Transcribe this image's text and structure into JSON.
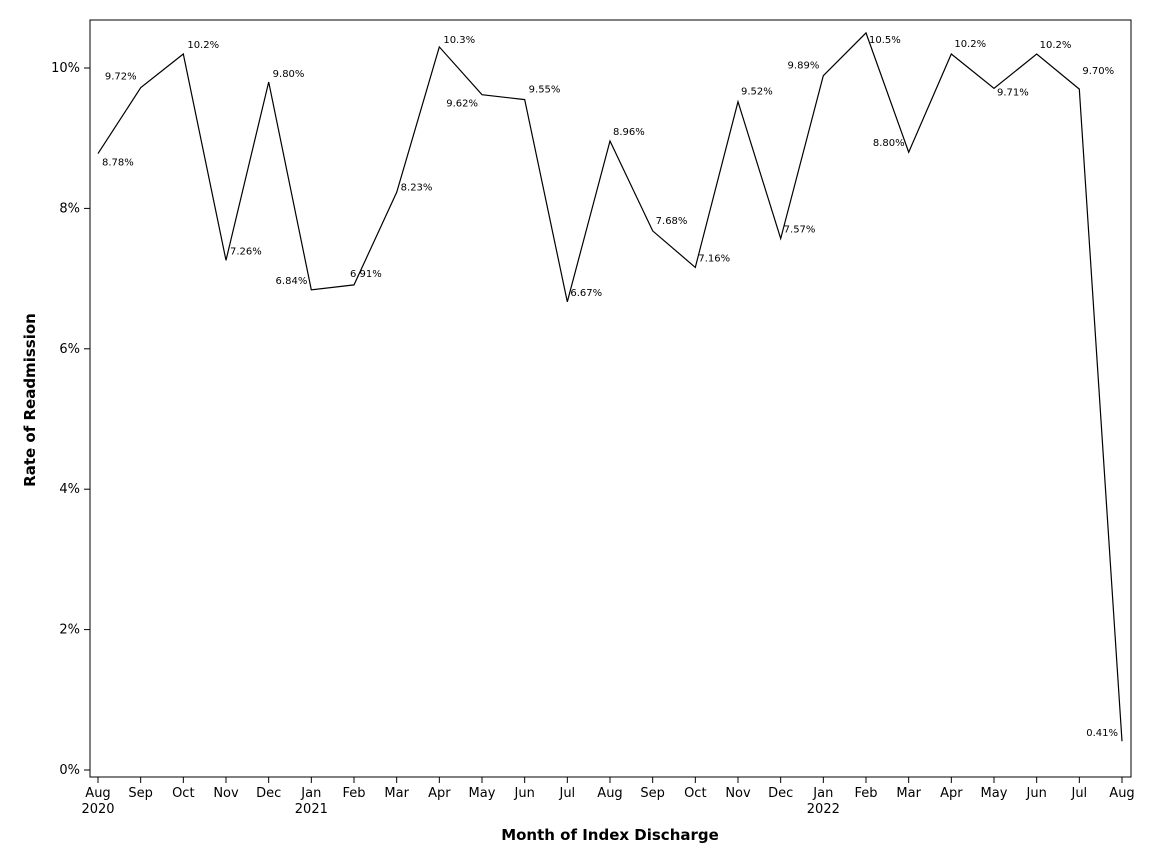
{
  "chart_data": {
    "type": "line",
    "title": "",
    "xlabel": "Month of Index Discharge",
    "ylabel": "Rate of Readmission",
    "ylim": [
      0,
      10.8
    ],
    "yticks": [
      "0%",
      "2%",
      "4%",
      "6%",
      "8%",
      "10%"
    ],
    "grid": false,
    "legend": "none",
    "line_color": "#000000",
    "x": [
      {
        "month": "Aug",
        "year": "2020"
      },
      {
        "month": "Sep",
        "year": ""
      },
      {
        "month": "Oct",
        "year": ""
      },
      {
        "month": "Nov",
        "year": ""
      },
      {
        "month": "Dec",
        "year": ""
      },
      {
        "month": "Jan",
        "year": "2021"
      },
      {
        "month": "Feb",
        "year": ""
      },
      {
        "month": "Mar",
        "year": ""
      },
      {
        "month": "Apr",
        "year": ""
      },
      {
        "month": "May",
        "year": ""
      },
      {
        "month": "Jun",
        "year": ""
      },
      {
        "month": "Jul",
        "year": ""
      },
      {
        "month": "Aug",
        "year": ""
      },
      {
        "month": "Sep",
        "year": ""
      },
      {
        "month": "Oct",
        "year": ""
      },
      {
        "month": "Nov",
        "year": ""
      },
      {
        "month": "Dec",
        "year": ""
      },
      {
        "month": "Jan",
        "year": "2022"
      },
      {
        "month": "Feb",
        "year": ""
      },
      {
        "month": "Mar",
        "year": ""
      },
      {
        "month": "Apr",
        "year": ""
      },
      {
        "month": "May",
        "year": ""
      },
      {
        "month": "Jun",
        "year": ""
      },
      {
        "month": "Jul",
        "year": ""
      },
      {
        "month": "Aug",
        "year": ""
      }
    ],
    "series": [
      {
        "values": [
          8.78,
          9.72,
          10.2,
          7.26,
          9.8,
          6.84,
          6.91,
          8.23,
          10.3,
          9.62,
          9.55,
          6.67,
          8.96,
          7.68,
          7.16,
          9.52,
          7.57,
          9.89,
          10.5,
          8.8,
          10.2,
          9.71,
          10.2,
          9.7,
          0.41
        ],
        "labels": [
          "8.78%",
          "9.72%",
          "10.2%",
          "7.26%",
          "9.80%",
          "6.84%",
          "6.91%",
          "8.23%",
          "10.3%",
          "9.62%",
          "9.55%",
          "6.67%",
          "8.96%",
          "7.68%",
          "7.16%",
          "9.52%",
          "7.57%",
          "9.89%",
          "10.5%",
          "8.80%",
          "10.2%",
          "9.71%",
          "10.2%",
          "9.70%",
          "0.41%"
        ]
      }
    ]
  }
}
